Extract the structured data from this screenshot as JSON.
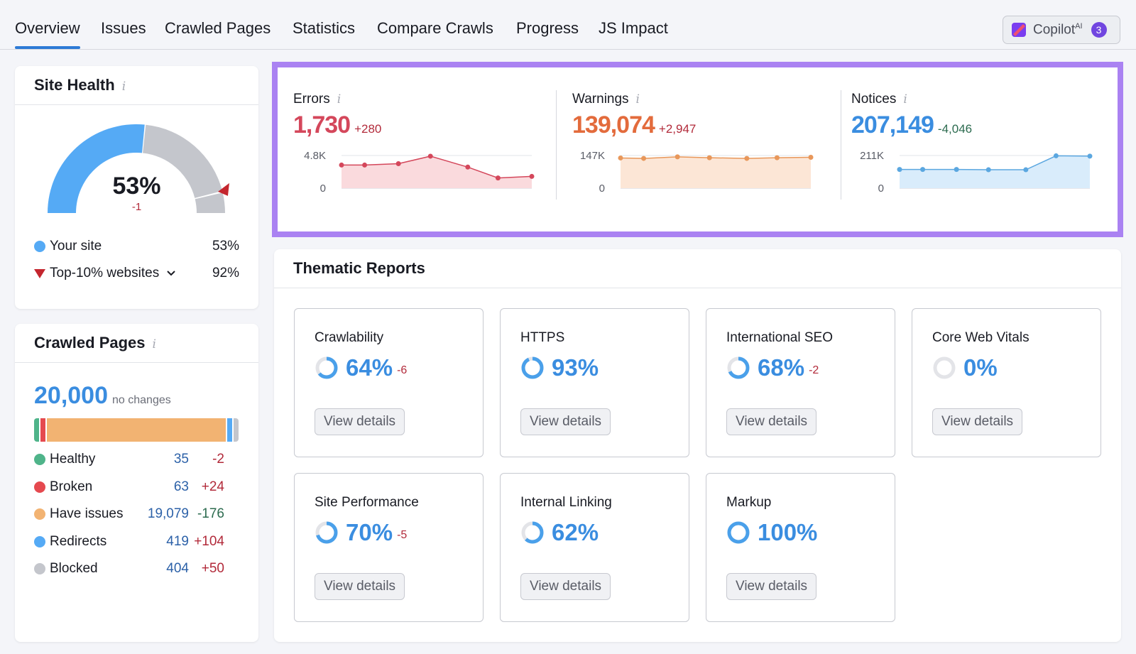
{
  "tabs": [
    {
      "label": "Overview",
      "active": true
    },
    {
      "label": "Issues"
    },
    {
      "label": "Crawled Pages"
    },
    {
      "label": "Statistics"
    },
    {
      "label": "Compare Crawls"
    },
    {
      "label": "Progress"
    },
    {
      "label": "JS Impact"
    }
  ],
  "copilot": {
    "label": "Copilot",
    "sup": "AI",
    "badge": "3",
    "icon": "copilot-logo-icon"
  },
  "site_health": {
    "title": "Site Health",
    "value": "53%",
    "delta": "-1",
    "score": 53,
    "top10_score": 92,
    "legend": [
      {
        "label": "Your site",
        "value": "53%",
        "color": "#55aaf5"
      },
      {
        "label": "Top-10% websites",
        "value": "92%",
        "color": "#c4262e"
      }
    ]
  },
  "crawled_pages": {
    "title": "Crawled Pages",
    "total": "20,000",
    "total_note": "no changes",
    "rows": [
      {
        "label": "Healthy",
        "value": "35",
        "delta": "-2",
        "count": 35,
        "color": "#4fb48a",
        "delta_color": "#b22a3a"
      },
      {
        "label": "Broken",
        "value": "63",
        "delta": "+24",
        "count": 63,
        "color": "#e5494f",
        "delta_color": "#b22a3a"
      },
      {
        "label": "Have issues",
        "value": "19,079",
        "delta": "-176",
        "count": 19079,
        "color": "#f2b372",
        "delta_color": "#2c6b4f"
      },
      {
        "label": "Redirects",
        "value": "419",
        "delta": "+104",
        "count": 419,
        "color": "#55aaf5",
        "delta_color": "#b22a3a"
      },
      {
        "label": "Blocked",
        "value": "404",
        "delta": "+50",
        "count": 404,
        "color": "#c4c6cc",
        "delta_color": "#b22a3a"
      }
    ]
  },
  "chart_data": [
    {
      "type": "area",
      "name": "Errors",
      "value": "1,730",
      "delta": "+280",
      "ylim": [
        0,
        4800
      ],
      "yticks": [
        "4.8K",
        "0"
      ],
      "values": [
        3400,
        3400,
        3600,
        4700,
        3100,
        1500,
        1730
      ],
      "color": "#d4475b",
      "fill": "#fadadd",
      "value_color": "#d4475b",
      "delta_color": "#b22a3a"
    },
    {
      "type": "area",
      "name": "Warnings",
      "value": "139,074",
      "delta": "+2,947",
      "ylim": [
        0,
        147000
      ],
      "yticks": [
        "147K",
        "0"
      ],
      "values": [
        136000,
        134000,
        141000,
        137000,
        134000,
        137000,
        139074
      ],
      "color": "#e8975a",
      "fill": "#fce6d6",
      "value_color": "#e36b3c",
      "delta_color": "#b22a3a"
    },
    {
      "type": "area",
      "name": "Notices",
      "value": "207,149",
      "delta": "-4,046",
      "ylim": [
        0,
        211000
      ],
      "yticks": [
        "211K",
        "0"
      ],
      "values": [
        121000,
        121000,
        121000,
        119000,
        119000,
        209000,
        207149
      ],
      "color": "#5ba7e0",
      "fill": "#d9ecfb",
      "value_color": "#3a8de0",
      "delta_color": "#2c6b4f"
    }
  ],
  "thematic": {
    "title": "Thematic Reports",
    "button": "View details",
    "items": [
      {
        "title": "Crawlability",
        "value": "64%",
        "delta": "-6",
        "score": 64
      },
      {
        "title": "HTTPS",
        "value": "93%",
        "delta": "",
        "score": 93
      },
      {
        "title": "International SEO",
        "value": "68%",
        "delta": "-2",
        "score": 68
      },
      {
        "title": "Core Web Vitals",
        "value": "0%",
        "delta": "",
        "score": 0
      },
      {
        "title": "Site Performance",
        "value": "70%",
        "delta": "-5",
        "score": 70
      },
      {
        "title": "Internal Linking",
        "value": "62%",
        "delta": "",
        "score": 62
      },
      {
        "title": "Markup",
        "value": "100%",
        "delta": "",
        "score": 100
      }
    ]
  }
}
